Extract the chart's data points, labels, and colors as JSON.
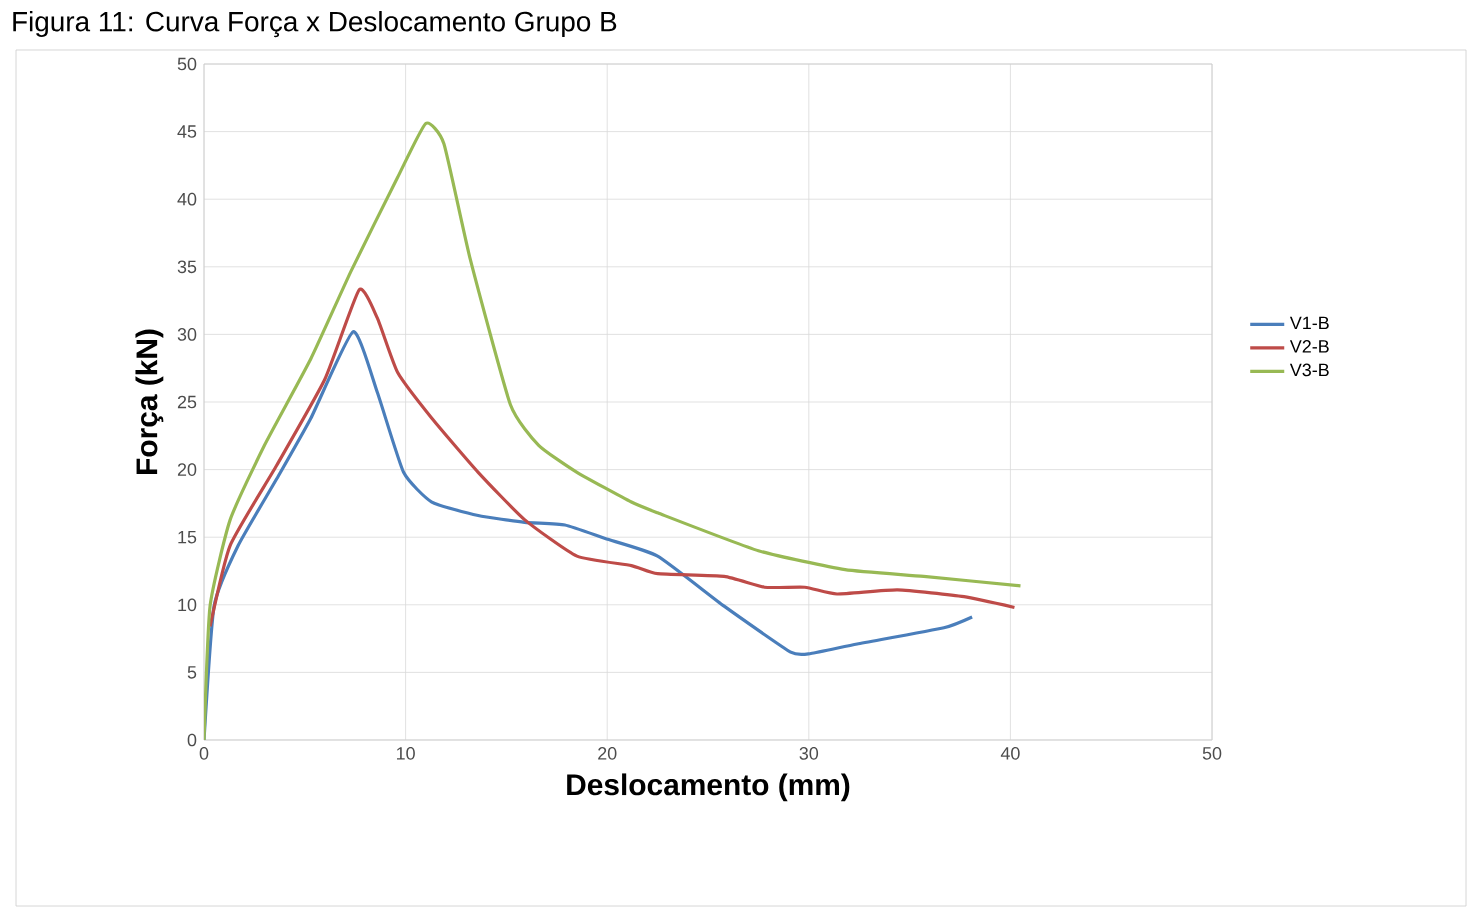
{
  "chart_data": {
    "type": "line",
    "title": "Figura 11: Curva Força x Deslocamento Grupo B",
    "xlabel": "Deslocamento (mm)",
    "ylabel": "Força (kN)",
    "xlim": [
      0,
      50
    ],
    "ylim": [
      0,
      50
    ],
    "xticks": [
      0,
      10,
      20,
      30,
      40,
      50
    ],
    "yticks": [
      0,
      5,
      10,
      15,
      20,
      25,
      30,
      35,
      40,
      45,
      50
    ],
    "grid": true,
    "legend": "right",
    "marker": "none",
    "line_style": "solid",
    "series": [
      {
        "name": "V1-B",
        "color": "#4a7ebb",
        "x": [
          0,
          0.5,
          1.7,
          3.6,
          5.3,
          7.4,
          8.6,
          9.9,
          11.3,
          13.6,
          15.9,
          17.9,
          19.9,
          22.5,
          25.8,
          29.1,
          30.1,
          32.4,
          36.7,
          38.1
        ],
        "values": [
          0,
          9.9,
          14.4,
          19.3,
          23.8,
          30.2,
          25.7,
          19.8,
          17.6,
          16.6,
          16.1,
          15.9,
          14.9,
          13.6,
          9.9,
          6.5,
          6.4,
          7.1,
          8.3,
          9.1
        ]
      },
      {
        "name": "V2-B",
        "color": "#be4b48",
        "x": [
          0.3,
          1.3,
          3.6,
          6,
          7.7,
          8.6,
          9.6,
          11.3,
          13.6,
          15.9,
          18.5,
          21.2,
          22.5,
          25.8,
          27.8,
          29.8,
          31.4,
          34.4,
          37.7,
          40.2
        ],
        "values": [
          8.4,
          14.4,
          20.3,
          26.7,
          33.3,
          31.2,
          27.2,
          23.8,
          19.8,
          16.3,
          13.6,
          12.9,
          12.3,
          12.1,
          11.3,
          11.3,
          10.8,
          11.1,
          10.6,
          9.8
        ]
      },
      {
        "name": "V3-B",
        "color": "#98b954",
        "x": [
          0,
          0.3,
          1.3,
          3,
          5.3,
          7.3,
          9.6,
          11,
          11.9,
          13.2,
          15.2,
          16.6,
          18.5,
          21.2,
          22.5,
          27.5,
          31.8,
          35.7,
          40.5
        ],
        "values": [
          0,
          9.9,
          16.3,
          21.8,
          28.2,
          34.7,
          41.6,
          45.6,
          44.1,
          35.6,
          24.8,
          21.8,
          19.8,
          17.6,
          16.8,
          14,
          12.6,
          12.1,
          11.4
        ]
      }
    ]
  }
}
